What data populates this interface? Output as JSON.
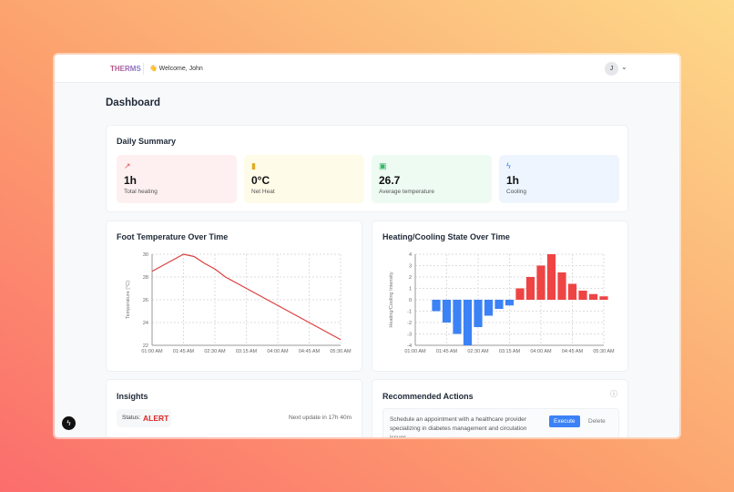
{
  "header": {
    "logo": "THERMS",
    "welcome": "👋 Welcome, John",
    "avatar_initial": "J"
  },
  "page_title": "Dashboard",
  "summary": {
    "title": "Daily Summary",
    "stats": [
      {
        "icon": "trending-up-icon",
        "glyph": "↗",
        "value": "1h",
        "label": "Total heating",
        "bg": "#fef0f0",
        "color": "#e0535b"
      },
      {
        "icon": "bar-chart-icon",
        "glyph": "▮",
        "value": "0°C",
        "label": "Net Heat",
        "bg": "#fefbe8",
        "color": "#e0a91f"
      },
      {
        "icon": "chart-square-icon",
        "glyph": "▣",
        "value": "26.7",
        "label": "Average temperature",
        "bg": "#edfbf2",
        "color": "#34b86a"
      },
      {
        "icon": "lightning-icon",
        "glyph": "ϟ",
        "value": "1h",
        "label": "Cooling",
        "bg": "#eef5fe",
        "color": "#3b82f6"
      }
    ]
  },
  "chart_data": [
    {
      "type": "line",
      "title": "Foot Temperature Over Time",
      "xlabel": "",
      "ylabel": "Temperature (°C)",
      "ylim": [
        22,
        30
      ],
      "yticks": [
        22,
        24,
        26,
        28,
        30
      ],
      "grid": true,
      "color": "#dc3f3f",
      "x": [
        "01:00 AM",
        "01:15 AM",
        "01:30 AM",
        "01:45 AM",
        "02:00 AM",
        "02:15 AM",
        "02:30 AM",
        "02:45 AM",
        "03:00 AM",
        "03:15 AM",
        "03:30 AM",
        "03:45 AM",
        "04:00 AM",
        "04:15 AM",
        "04:30 AM",
        "04:45 AM",
        "05:00 AM",
        "05:15 AM",
        "05:30 AM"
      ],
      "xticks": [
        "01:00 AM",
        "01:45 AM",
        "02:30 AM",
        "03:15 AM",
        "04:00 AM",
        "04:45 AM",
        "05:30 AM"
      ],
      "values": [
        28.5,
        29,
        29.5,
        30,
        29.8,
        29.2,
        28.7,
        28,
        27.5,
        27,
        26.5,
        26,
        25.5,
        25,
        24.5,
        24,
        23.5,
        23,
        22.5
      ]
    },
    {
      "type": "bar",
      "title": "Heating/Cooling State Over Time",
      "xlabel": "",
      "ylabel": "Heating/Cooling Intensity",
      "ylim": [
        -4,
        4
      ],
      "yticks": [
        -4,
        -3,
        -2,
        -1,
        0,
        1,
        2,
        3,
        4
      ],
      "grid": true,
      "colors": {
        "cooling": "#3b82f6",
        "heating": "#ef4444"
      },
      "x": [
        "01:00 AM",
        "01:15 AM",
        "01:30 AM",
        "01:45 AM",
        "02:00 AM",
        "02:15 AM",
        "02:30 AM",
        "02:45 AM",
        "03:00 AM",
        "03:15 AM",
        "03:30 AM",
        "03:45 AM",
        "04:00 AM",
        "04:15 AM",
        "04:30 AM",
        "04:45 AM",
        "05:00 AM",
        "05:15 AM",
        "05:30 AM"
      ],
      "xticks": [
        "01:00 AM",
        "01:45 AM",
        "02:30 AM",
        "03:15 AM",
        "04:00 AM",
        "04:45 AM",
        "05:30 AM"
      ],
      "values": [
        0,
        0,
        -1,
        -2,
        -3,
        -4,
        -2.4,
        -1.4,
        -0.8,
        -0.5,
        1,
        2,
        3,
        4,
        2.4,
        1.4,
        0.8,
        0.5,
        0.3
      ]
    }
  ],
  "insights": {
    "title": "Insights",
    "status_label": "Status:",
    "status": "ALERT",
    "next_update": "Next update in 17h 40m"
  },
  "actions": {
    "title": "Recommended Actions",
    "item": "Schedule an appointment with a healthcare provider specializing in diabetes management and circulation issues",
    "execute": "Execute",
    "delete": "Delete"
  }
}
